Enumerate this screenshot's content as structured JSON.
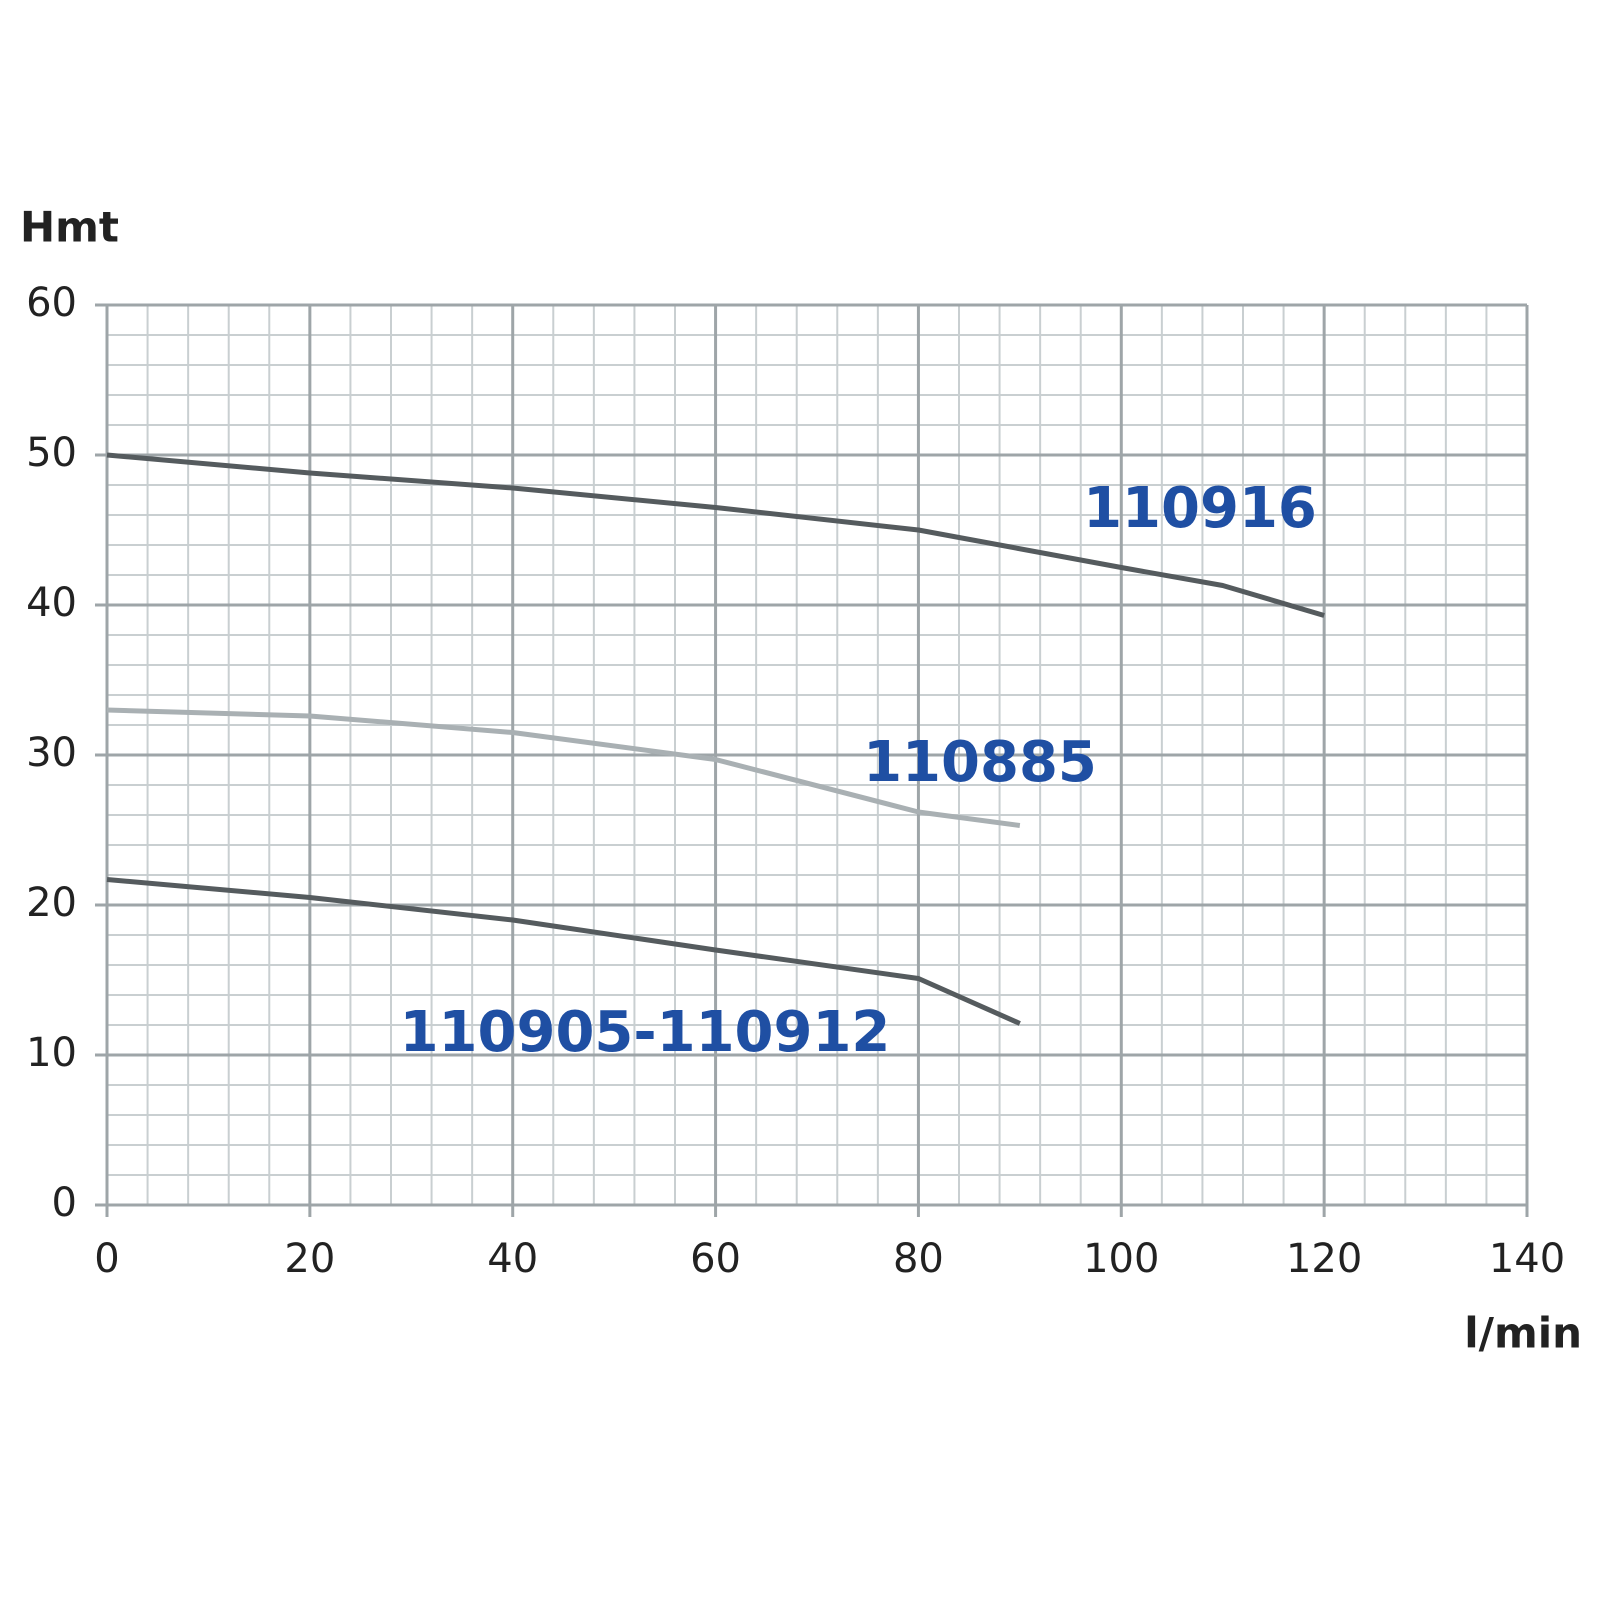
{
  "chart_data": {
    "type": "line",
    "y_label": "Hmt",
    "x_label": "l/min",
    "xlim": [
      0,
      140
    ],
    "xticks": [
      0,
      20,
      40,
      60,
      80,
      100,
      120,
      140
    ],
    "ylim": [
      0,
      60
    ],
    "yticks": [
      0,
      10,
      20,
      30,
      40,
      50,
      60
    ],
    "grid": true,
    "label_color": "#1f4fa3",
    "series": [
      {
        "name": "110916",
        "color": "#555b5e",
        "x": [
          0,
          20,
          40,
          60,
          80,
          100,
          110,
          120
        ],
        "values": [
          50,
          48.8,
          47.8,
          46.5,
          45,
          42.5,
          41.3,
          39.3
        ]
      },
      {
        "name": "110885",
        "color": "#a9b0b3",
        "x": [
          0,
          20,
          40,
          60,
          80,
          90
        ],
        "values": [
          33,
          32.6,
          31.5,
          29.7,
          26.2,
          25.3
        ]
      },
      {
        "name": "110905-110912",
        "color": "#555b5e",
        "x": [
          0,
          20,
          40,
          60,
          80,
          90
        ],
        "values": [
          21.7,
          20.5,
          19,
          17,
          15.1,
          12.1
        ]
      }
    ]
  }
}
